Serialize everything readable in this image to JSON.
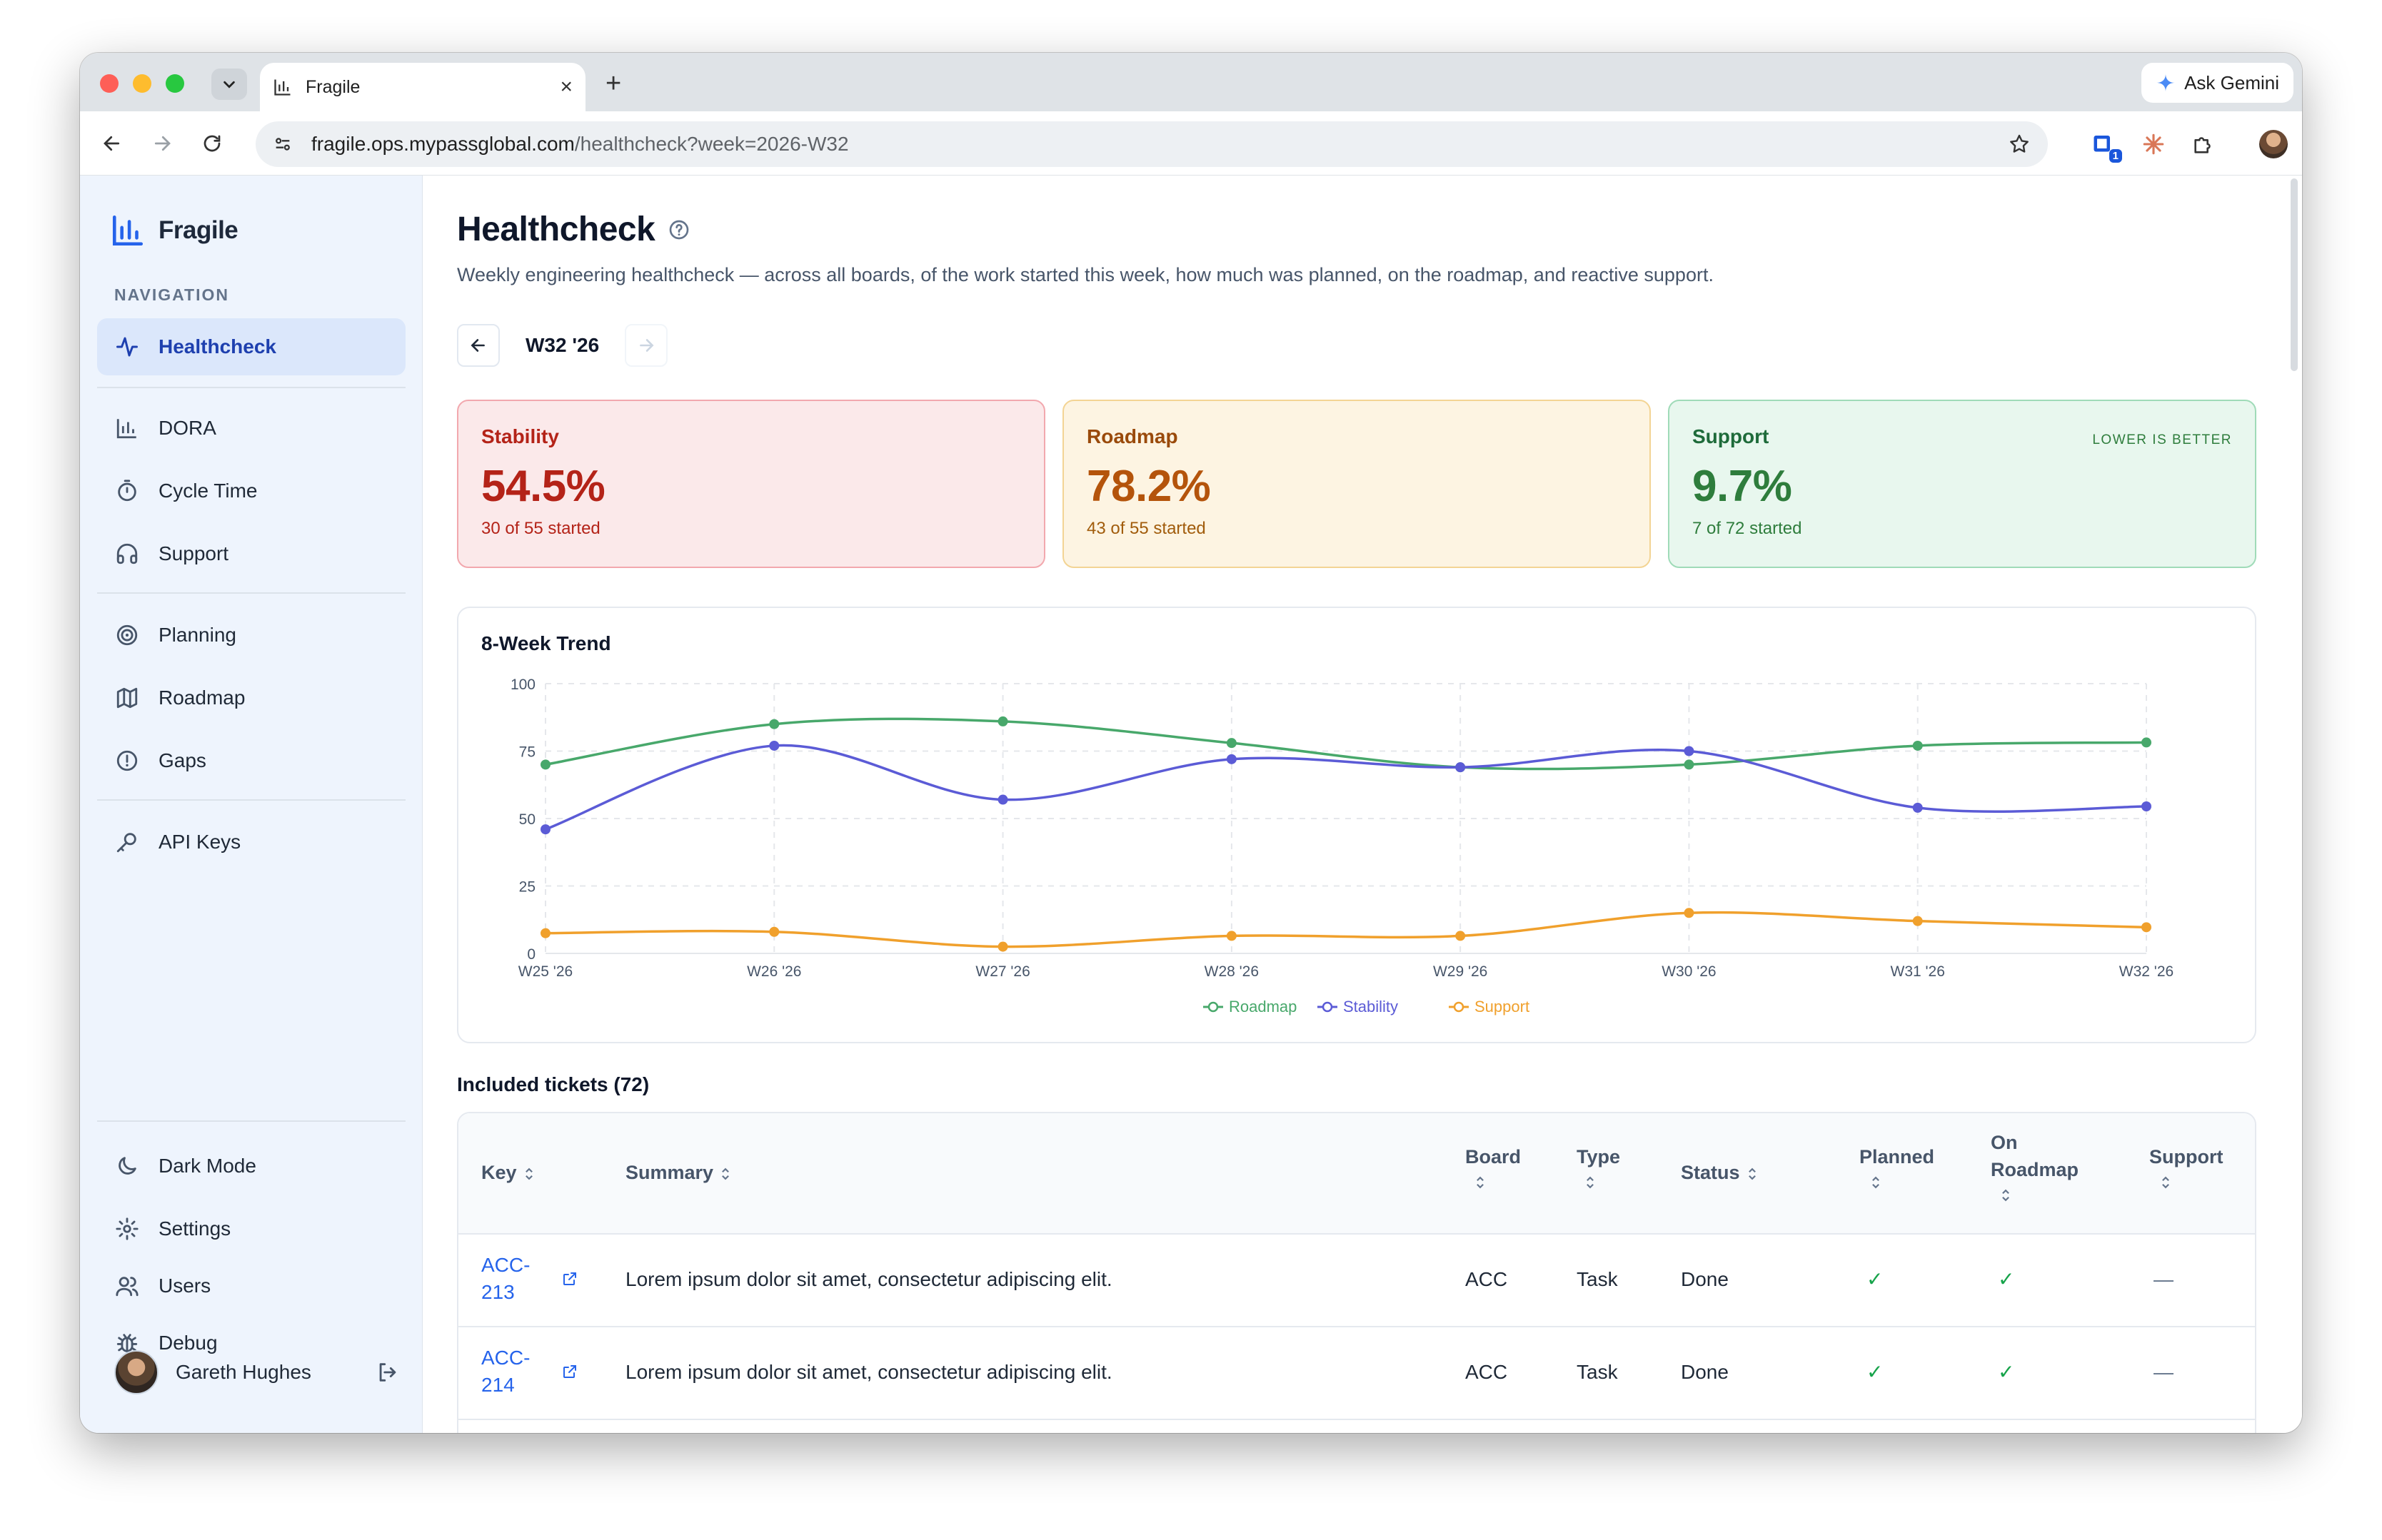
{
  "browser": {
    "tab_title": "Fragile",
    "url_host": "fragile.ops.mypassglobal.com",
    "url_path": "/healthcheck?week=2026-W32",
    "gemini_label": "Ask Gemini",
    "extension_badge": "1"
  },
  "sidebar": {
    "brand": "Fragile",
    "nav_heading": "NAVIGATION",
    "items": [
      {
        "label": "Healthcheck",
        "icon": "activity-icon",
        "active": true
      },
      {
        "label": "DORA",
        "icon": "bar-chart-icon"
      },
      {
        "label": "Cycle Time",
        "icon": "stopwatch-icon"
      },
      {
        "label": "Support",
        "icon": "headphones-icon"
      },
      {
        "label": "Planning",
        "icon": "target-icon"
      },
      {
        "label": "Roadmap",
        "icon": "map-icon"
      },
      {
        "label": "Gaps",
        "icon": "alert-circle-icon"
      },
      {
        "label": "API Keys",
        "icon": "key-icon"
      }
    ],
    "bottom_items": [
      {
        "label": "Dark Mode",
        "icon": "moon-icon"
      },
      {
        "label": "Settings",
        "icon": "gear-icon"
      },
      {
        "label": "Users",
        "icon": "users-icon"
      },
      {
        "label": "Debug",
        "icon": "bug-icon"
      }
    ],
    "user_name": "Gareth Hughes"
  },
  "main": {
    "title": "Healthcheck",
    "subtitle": "Weekly engineering healthcheck — across all boards, of the work started this week, how much was planned, on the roadmap, and reactive support.",
    "week_label": "W32 '26",
    "cards": [
      {
        "label": "Stability",
        "value": "54.5%",
        "sub": "30 of 55 started",
        "tone": "red"
      },
      {
        "label": "Roadmap",
        "value": "78.2%",
        "sub": "43 of 55 started",
        "tone": "amber"
      },
      {
        "label": "Support",
        "value": "9.7%",
        "sub": "7 of 72 started",
        "tone": "green",
        "note": "LOWER IS BETTER"
      }
    ],
    "trend_title": "8-Week Trend",
    "tickets_title": "Included tickets (72)",
    "table": {
      "headers": {
        "key": "Key",
        "summary": "Summary",
        "board": "Board",
        "type": "Type",
        "status": "Status",
        "planned": "Planned",
        "on_roadmap_1": "On",
        "on_roadmap_2": "Roadmap",
        "support": "Support"
      },
      "rows": [
        {
          "key_1": "ACC-",
          "key_2": "213",
          "summary": "Lorem ipsum dolor sit amet, consectetur adipiscing elit.",
          "board": "ACC",
          "type": "Task",
          "status": "Done",
          "planned": "✓",
          "on_roadmap": "✓",
          "support": "—"
        },
        {
          "key_1": "ACC-",
          "key_2": "214",
          "summary": "Lorem ipsum dolor sit amet, consectetur adipiscing elit.",
          "board": "ACC",
          "type": "Task",
          "status": "Done",
          "planned": "✓",
          "on_roadmap": "✓",
          "support": "—"
        }
      ]
    }
  },
  "chart_data": {
    "type": "line",
    "title": "8-Week Trend",
    "x": [
      "W25 '26",
      "W26 '26",
      "W27 '26",
      "W28 '26",
      "W29 '26",
      "W30 '26",
      "W31 '26",
      "W32 '26"
    ],
    "y_ticks": [
      0,
      25,
      50,
      75,
      100
    ],
    "ylim": [
      0,
      100
    ],
    "grid": true,
    "legend_position": "bottom",
    "series": [
      {
        "name": "Roadmap",
        "color": "#48a86b",
        "values": [
          70,
          85,
          86,
          78,
          69,
          70,
          77,
          78.2
        ]
      },
      {
        "name": "Stability",
        "color": "#5b5bd6",
        "values": [
          46,
          77,
          57,
          72,
          69,
          75,
          54,
          54.5
        ]
      },
      {
        "name": "Support",
        "color": "#f0a02c",
        "values": [
          7.5,
          8,
          2.5,
          6.5,
          6.5,
          15,
          12,
          9.7
        ]
      }
    ]
  }
}
